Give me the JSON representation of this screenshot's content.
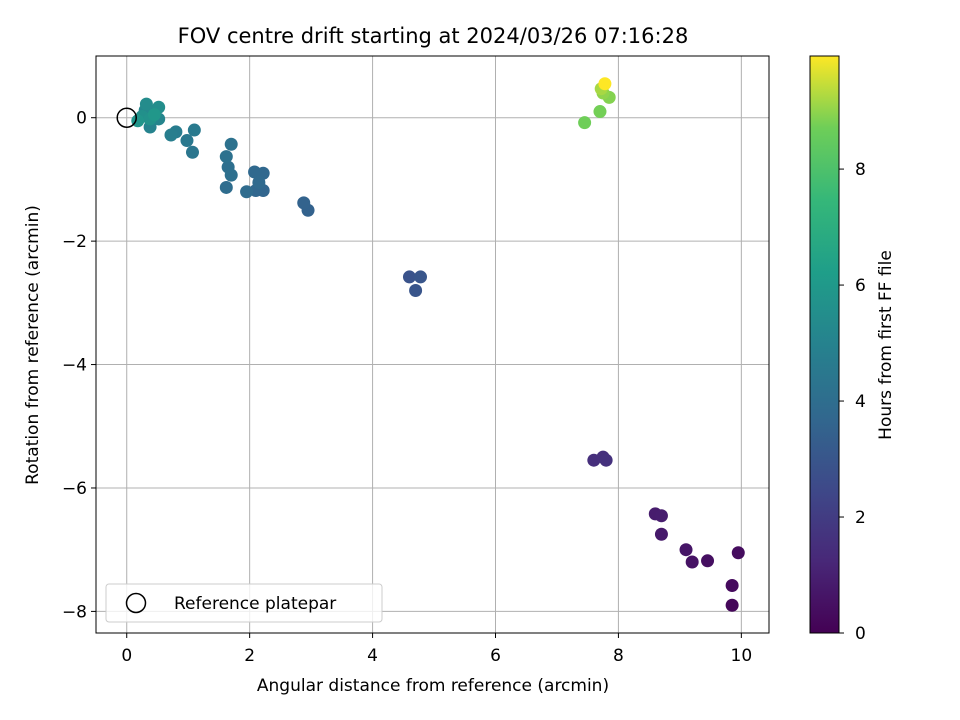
{
  "chart_data": {
    "type": "scatter",
    "title": "FOV centre drift starting at 2024/03/26 07:16:28",
    "xlabel": "Angular distance from reference (arcmin)",
    "ylabel": "Rotation from reference (arcmin)",
    "xlim": [
      -0.5,
      10.45
    ],
    "ylim": [
      -8.35,
      1.0
    ],
    "xticks": [
      0,
      2,
      4,
      6,
      8,
      10
    ],
    "yticks": [
      0,
      -2,
      -4,
      -6,
      -8
    ],
    "xtick_labels": [
      "0",
      "2",
      "4",
      "6",
      "8",
      "10"
    ],
    "ytick_labels": [
      "0",
      "−2",
      "−4",
      "−6",
      "−8"
    ],
    "grid": true,
    "legend": {
      "placement": "lower-left",
      "entries": [
        "Reference platepar"
      ]
    },
    "reference_point": {
      "x": 0,
      "y": 0
    },
    "colorbar": {
      "label": "Hours from first FF file",
      "range": [
        0,
        9.95
      ],
      "ticks": [
        0,
        2,
        4,
        6,
        8
      ],
      "tick_labels": [
        "0",
        "2",
        "4",
        "6",
        "8"
      ],
      "colormap": "viridis"
    },
    "points": [
      {
        "x": 9.85,
        "y": -7.9,
        "hours": 0.2
      },
      {
        "x": 9.85,
        "y": -7.58,
        "hours": 0.3
      },
      {
        "x": 9.95,
        "y": -7.05,
        "hours": 0.35
      },
      {
        "x": 9.45,
        "y": -7.18,
        "hours": 0.45
      },
      {
        "x": 9.2,
        "y": -7.2,
        "hours": 0.55
      },
      {
        "x": 9.1,
        "y": -7.0,
        "hours": 0.65
      },
      {
        "x": 8.7,
        "y": -6.75,
        "hours": 0.75
      },
      {
        "x": 8.6,
        "y": -6.42,
        "hours": 0.85
      },
      {
        "x": 8.7,
        "y": -6.45,
        "hours": 0.9
      },
      {
        "x": 7.6,
        "y": -5.55,
        "hours": 1.5
      },
      {
        "x": 7.75,
        "y": -5.5,
        "hours": 1.55
      },
      {
        "x": 7.8,
        "y": -5.55,
        "hours": 1.6
      },
      {
        "x": 4.6,
        "y": -2.58,
        "hours": 2.9
      },
      {
        "x": 4.7,
        "y": -2.8,
        "hours": 2.95
      },
      {
        "x": 4.78,
        "y": -2.58,
        "hours": 3.0
      },
      {
        "x": 2.95,
        "y": -1.5,
        "hours": 3.5
      },
      {
        "x": 2.88,
        "y": -1.38,
        "hours": 3.55
      },
      {
        "x": 2.22,
        "y": -1.18,
        "hours": 3.65
      },
      {
        "x": 2.1,
        "y": -1.18,
        "hours": 3.7
      },
      {
        "x": 2.22,
        "y": -0.9,
        "hours": 3.75
      },
      {
        "x": 2.08,
        "y": -0.88,
        "hours": 3.8
      },
      {
        "x": 2.15,
        "y": -1.05,
        "hours": 3.85
      },
      {
        "x": 1.95,
        "y": -1.2,
        "hours": 3.9
      },
      {
        "x": 1.62,
        "y": -1.13,
        "hours": 3.95
      },
      {
        "x": 1.65,
        "y": -0.8,
        "hours": 4.05
      },
      {
        "x": 1.7,
        "y": -0.93,
        "hours": 4.1
      },
      {
        "x": 1.62,
        "y": -0.63,
        "hours": 4.15
      },
      {
        "x": 1.7,
        "y": -0.43,
        "hours": 4.2
      },
      {
        "x": 1.07,
        "y": -0.56,
        "hours": 4.4
      },
      {
        "x": 0.98,
        "y": -0.37,
        "hours": 4.5
      },
      {
        "x": 1.1,
        "y": -0.2,
        "hours": 4.6
      },
      {
        "x": 0.8,
        "y": -0.23,
        "hours": 4.7
      },
      {
        "x": 0.72,
        "y": -0.28,
        "hours": 4.8
      },
      {
        "x": 0.38,
        "y": -0.15,
        "hours": 5.0
      },
      {
        "x": 0.52,
        "y": -0.02,
        "hours": 5.1
      },
      {
        "x": 0.3,
        "y": 0.12,
        "hours": 5.2
      },
      {
        "x": 0.42,
        "y": 0.1,
        "hours": 5.3
      },
      {
        "x": 0.32,
        "y": 0.22,
        "hours": 5.4
      },
      {
        "x": 0.52,
        "y": 0.17,
        "hours": 5.5
      },
      {
        "x": 0.25,
        "y": 0.02,
        "hours": 5.6
      },
      {
        "x": 0.38,
        "y": -0.02,
        "hours": 5.7
      },
      {
        "x": 0.18,
        "y": -0.05,
        "hours": 5.8
      },
      {
        "x": 0.45,
        "y": 0.05,
        "hours": 5.9
      },
      {
        "x": 7.45,
        "y": -0.08,
        "hours": 8.7
      },
      {
        "x": 7.7,
        "y": 0.1,
        "hours": 8.75
      },
      {
        "x": 7.85,
        "y": 0.33,
        "hours": 8.9
      },
      {
        "x": 7.75,
        "y": 0.4,
        "hours": 9.0
      },
      {
        "x": 7.72,
        "y": 0.47,
        "hours": 9.2
      },
      {
        "x": 7.78,
        "y": 0.55,
        "hours": 9.95
      }
    ]
  }
}
